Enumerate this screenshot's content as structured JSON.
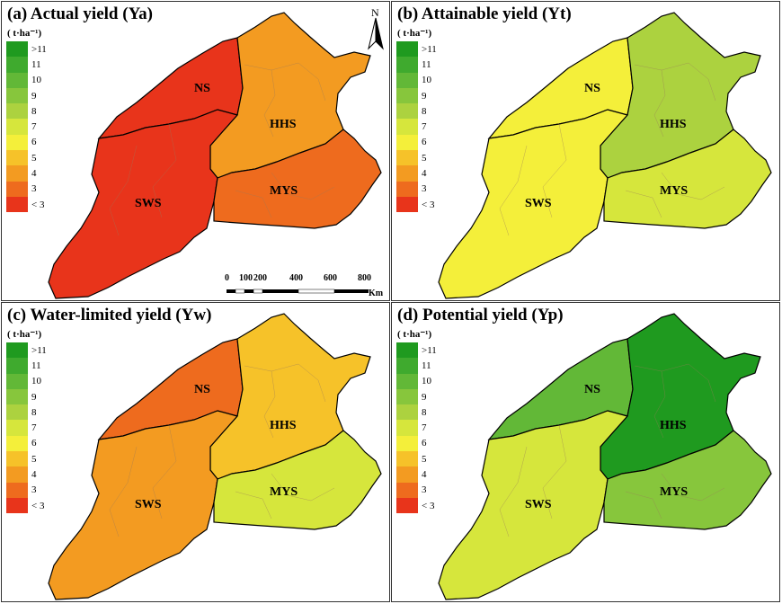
{
  "figure": {
    "panels": [
      {
        "title": "(a) Actual yield (Ya)",
        "unit": "( t·ha⁻¹)",
        "name": "Ya"
      },
      {
        "title": "(b) Attainable yield (Yt)",
        "unit": "( t·ha⁻¹)",
        "name": "Yt"
      },
      {
        "title": "(c) Water-limited yield (Yw)",
        "unit": "( t·ha⁻¹)",
        "name": "Yw"
      },
      {
        "title": "(d) Potential yield (Yp)",
        "unit": "( t·ha⁻¹)",
        "name": "Yp"
      }
    ],
    "legend": {
      "labels": [
        ">11",
        "11",
        "10",
        "9",
        "8",
        "7",
        "6",
        "5",
        "4",
        "3",
        "< 3"
      ],
      "colors": [
        "#1f9a1f",
        "#3faa2e",
        "#62b837",
        "#87c63c",
        "#acd23f",
        "#d6e63c",
        "#f4ef3a",
        "#f6c229",
        "#f39b21",
        "#ee6b1e",
        "#e8341b"
      ]
    },
    "regions": [
      "NS",
      "HHS",
      "SWS",
      "MYS"
    ],
    "scale_bar": {
      "ticks": [
        "0",
        "100",
        "200",
        "400",
        "600",
        "800"
      ],
      "unit": "Km"
    },
    "north_label": "N",
    "region_fill": {
      "Ya": {
        "NS": "#e8341b",
        "HHS": "#f39b21",
        "SWS": "#e8341b",
        "MYS": "#ee6b1e"
      },
      "Yt": {
        "NS": "#f4ef3a",
        "HHS": "#acd23f",
        "SWS": "#f4ef3a",
        "MYS": "#d6e63c"
      },
      "Yw": {
        "NS": "#ee6b1e",
        "HHS": "#f6c229",
        "SWS": "#f39b21",
        "MYS": "#d6e63c"
      },
      "Yp": {
        "NS": "#62b837",
        "HHS": "#1f9a1f",
        "SWS": "#d6e63c",
        "MYS": "#87c63c"
      }
    }
  }
}
